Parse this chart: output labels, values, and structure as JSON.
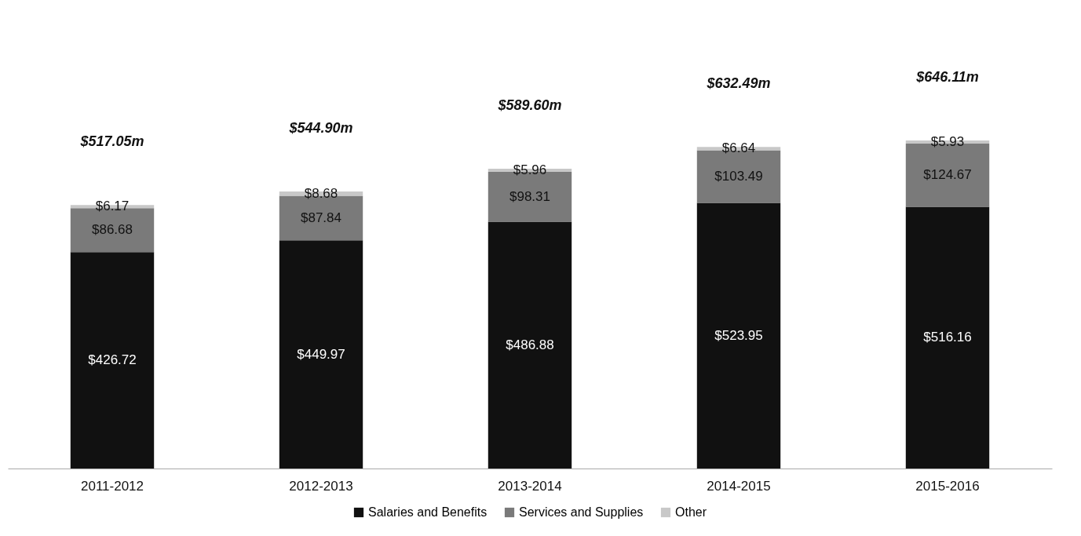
{
  "chart_data": {
    "type": "bar",
    "stacked": true,
    "categories": [
      "2011-2012",
      "2012-2013",
      "2013-2014",
      "2014-2015",
      "2015-2016"
    ],
    "series": [
      {
        "name": "Salaries and Benefits",
        "color": "#111111",
        "values": [
          426.72,
          449.97,
          486.88,
          523.95,
          516.16
        ],
        "value_labels": [
          "$426.72",
          "$449.97",
          "$486.88",
          "$523.95",
          "$516.16"
        ]
      },
      {
        "name": "Services and Supplies",
        "color": "#7a7a7a",
        "values": [
          86.68,
          87.84,
          98.31,
          103.49,
          124.67
        ],
        "value_labels": [
          "$86.68",
          "$87.84",
          "$98.31",
          "$103.49",
          "$124.67"
        ]
      },
      {
        "name": "Other",
        "color": "#c8c8c8",
        "values": [
          6.17,
          8.68,
          5.96,
          6.64,
          5.93
        ],
        "value_labels": [
          "$6.17",
          "$8.68",
          "$5.96",
          "$6.64",
          "$5.93"
        ]
      }
    ],
    "annotations": [
      "$517.05m",
      "$544.90m",
      "$589.60m",
      "$632.49m",
      "$646.11m"
    ],
    "data_labels": true,
    "legend": "bottom",
    "grid": false
  }
}
